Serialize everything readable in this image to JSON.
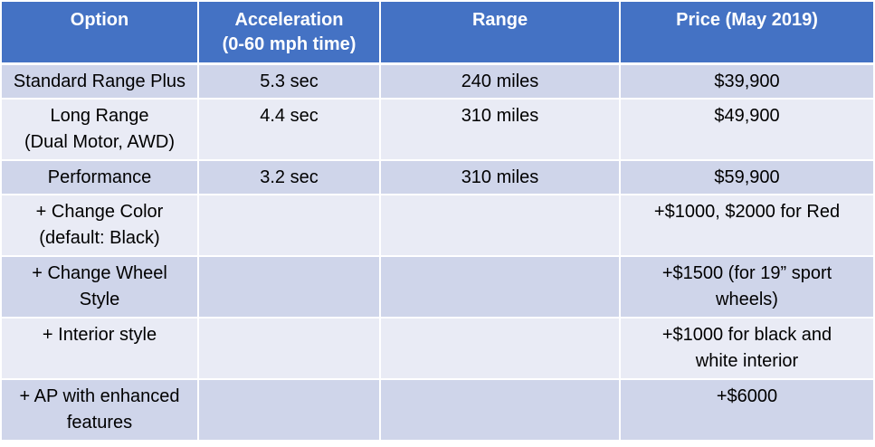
{
  "table": {
    "headers": [
      "Option",
      "Acceleration\n(0-60 mph time)",
      "Range",
      "Price (May 2019)"
    ],
    "rows": [
      [
        "Standard Range Plus",
        "5.3 sec",
        "240 miles",
        "$39,900"
      ],
      [
        "Long Range\n(Dual Motor, AWD)",
        "4.4 sec",
        "310 miles",
        "$49,900"
      ],
      [
        "Performance",
        "3.2 sec",
        "310 miles",
        "$59,900"
      ],
      [
        "+ Change Color\n(default: Black)",
        "",
        "",
        "+$1000, $2000 for Red"
      ],
      [
        "+ Change Wheel\nStyle",
        "",
        "",
        "+$1500 (for 19” sport\nwheels)"
      ],
      [
        "+ Interior style",
        "",
        "",
        "+$1000 for black and\nwhite interior"
      ],
      [
        "+ AP with enhanced\nfeatures",
        "",
        "",
        "+$6000"
      ]
    ]
  },
  "colors": {
    "header_bg": "#4472c4",
    "row_odd_bg": "#cfd5ea",
    "row_even_bg": "#e9ebf5"
  }
}
